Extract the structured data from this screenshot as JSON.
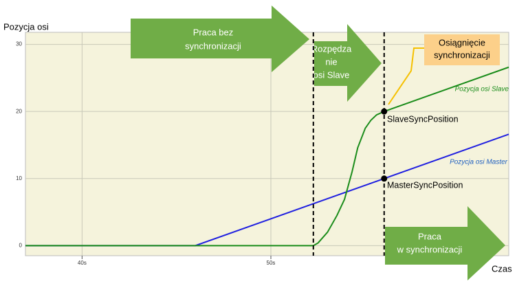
{
  "chart_data": {
    "type": "line",
    "y_axis_label": "Pozycja osi",
    "x_axis_label": "Czas",
    "xlim": [
      37,
      62.6
    ],
    "ylim": [
      -1.5,
      31.8
    ],
    "xticks": [
      {
        "value": 40,
        "label": "40s"
      },
      {
        "value": 50,
        "label": "50s"
      }
    ],
    "yticks": [
      0,
      10,
      20,
      30
    ],
    "grid": true,
    "series": [
      {
        "name": "Pozycja osi Master",
        "color": "#1f1fe0",
        "x": [
          37,
          46,
          56,
          62.6
        ],
        "values": [
          0,
          0,
          10,
          16.6
        ]
      },
      {
        "name": "Pozycja osi Slave",
        "color": "#1a8c1a",
        "x": [
          37,
          52.25,
          52.5,
          53,
          53.5,
          53.9,
          54.3,
          54.6,
          55,
          55.3,
          55.6,
          56,
          62.6
        ],
        "values": [
          0,
          0,
          0.4,
          2,
          4.5,
          6.9,
          11,
          14.6,
          17.5,
          18.7,
          19.5,
          20,
          26.6
        ]
      }
    ],
    "phase_lines": [
      52.25,
      56
    ],
    "sync_labels": [
      "SlaveSyncPosition",
      "MasterSyncPosition"
    ],
    "arrows": [
      [
        "Praca bez",
        "synchronizacji"
      ],
      [
        "Rozpędza",
        "nie",
        "osi Slave"
      ],
      [
        "Praca",
        "w synchronizacji"
      ]
    ],
    "callout": [
      "Osiągnięcie",
      "synchronizacji"
    ]
  }
}
